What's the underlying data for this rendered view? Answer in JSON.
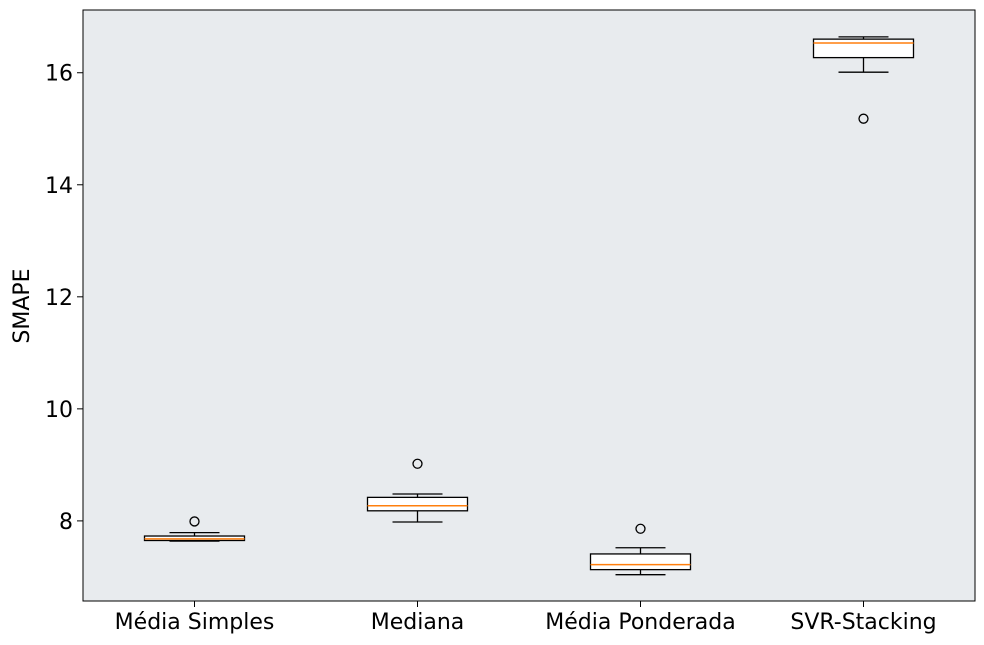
{
  "chart_data": {
    "type": "box",
    "ylabel": "SMAPE",
    "xlabel": "",
    "title": "",
    "ylim": [
      6.57,
      17.12
    ],
    "yticks": [
      8,
      10,
      12,
      14,
      16
    ],
    "categories": [
      "Média Simples",
      "Mediana",
      "Média Ponderada",
      "SVR-Stacking"
    ],
    "boxes": [
      {
        "name": "Média Simples",
        "whislo": 7.64,
        "q1": 7.65,
        "med": 7.68,
        "q3": 7.73,
        "whishi": 7.79,
        "fliers": [
          7.99
        ]
      },
      {
        "name": "Mediana",
        "whislo": 7.98,
        "q1": 8.18,
        "med": 8.27,
        "q3": 8.42,
        "whishi": 8.48,
        "fliers": [
          9.02
        ]
      },
      {
        "name": "Média Ponderada",
        "whislo": 7.04,
        "q1": 7.13,
        "med": 7.22,
        "q3": 7.41,
        "whishi": 7.52,
        "fliers": [
          7.86
        ]
      },
      {
        "name": "SVR-Stacking",
        "whislo": 16.01,
        "q1": 16.27,
        "med": 16.53,
        "q3": 16.6,
        "whishi": 16.64,
        "fliers": [
          15.18
        ]
      }
    ],
    "colors": {
      "plot_background": "#e8ebee",
      "box_edge": "#000000",
      "median": "#ff7f0e",
      "box_fill": "#ffffff"
    },
    "grid": false,
    "legend": "none"
  }
}
